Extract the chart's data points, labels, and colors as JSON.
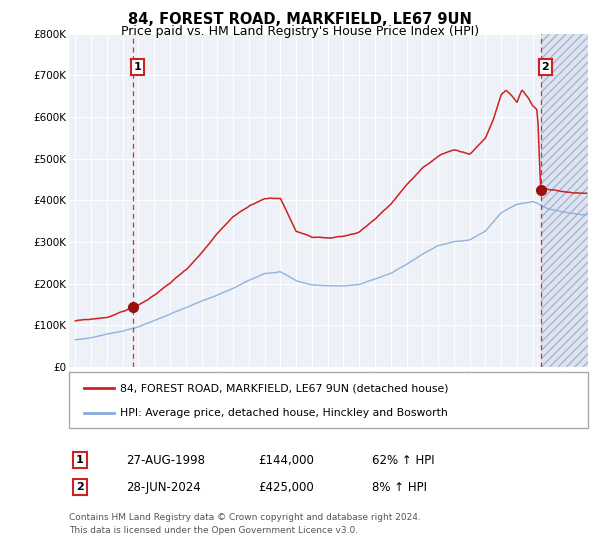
{
  "title": "84, FOREST ROAD, MARKFIELD, LE67 9UN",
  "subtitle": "Price paid vs. HM Land Registry's House Price Index (HPI)",
  "title_fontsize": 10.5,
  "subtitle_fontsize": 9,
  "hpi_line_color": "#88aadd",
  "price_line_color": "#cc2222",
  "dot_color": "#991111",
  "vline_color": "#cc3333",
  "plot_area_bg": "#eef2f8",
  "grid_color": "#ffffff",
  "annotation1": {
    "label": "1",
    "date": "27-AUG-1998",
    "price": 144000,
    "pct": "62% ↑ HPI",
    "x_year": 1998.65
  },
  "annotation2": {
    "label": "2",
    "date": "28-JUN-2024",
    "price": 425000,
    "pct": "8% ↑ HPI",
    "x_year": 2024.49
  },
  "legend_line1": "84, FOREST ROAD, MARKFIELD, LE67 9UN (detached house)",
  "legend_line2": "HPI: Average price, detached house, Hinckley and Bosworth",
  "footer1": "Contains HM Land Registry data © Crown copyright and database right 2024.",
  "footer2": "This data is licensed under the Open Government Licence v3.0.",
  "ylim": [
    0,
    800000
  ],
  "xlim_start": 1994.6,
  "xlim_end": 2027.5,
  "yticks": [
    0,
    100000,
    200000,
    300000,
    400000,
    500000,
    600000,
    700000,
    800000
  ],
  "ytick_labels": [
    "£0",
    "£100K",
    "£200K",
    "£300K",
    "£400K",
    "£500K",
    "£600K",
    "£700K",
    "£800K"
  ],
  "xticks": [
    1995,
    1996,
    1997,
    1998,
    1999,
    2000,
    2001,
    2002,
    2003,
    2004,
    2005,
    2006,
    2007,
    2008,
    2009,
    2010,
    2011,
    2012,
    2013,
    2014,
    2015,
    2016,
    2017,
    2018,
    2019,
    2020,
    2021,
    2022,
    2023,
    2024,
    2025,
    2026,
    2027
  ]
}
